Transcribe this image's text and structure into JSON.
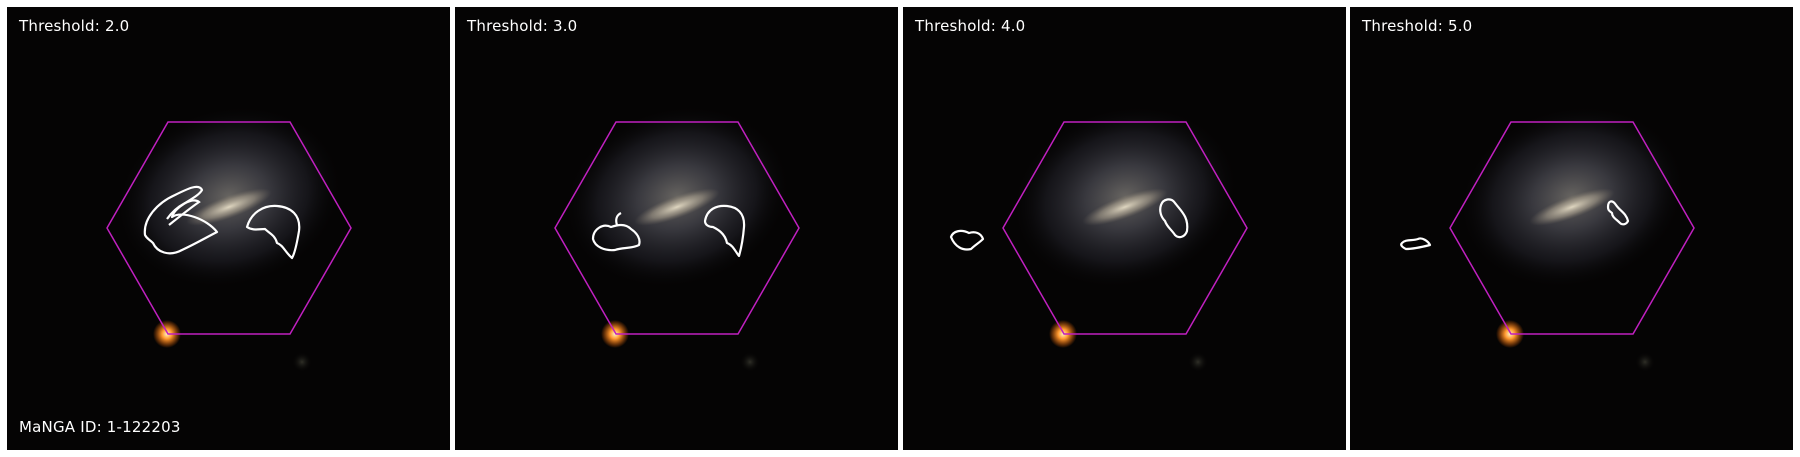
{
  "panels": [
    {
      "title": "Threshold: 2.0"
    },
    {
      "title": "Threshold: 3.0"
    },
    {
      "title": "Threshold: 4.0"
    },
    {
      "title": "Threshold: 5.0"
    }
  ],
  "manga_id": "MaNGA ID: 1-122203",
  "colors": {
    "hexagon": "#c020c0",
    "contour": "#ffffff",
    "background": "#050404",
    "star": "#ff9a30"
  }
}
